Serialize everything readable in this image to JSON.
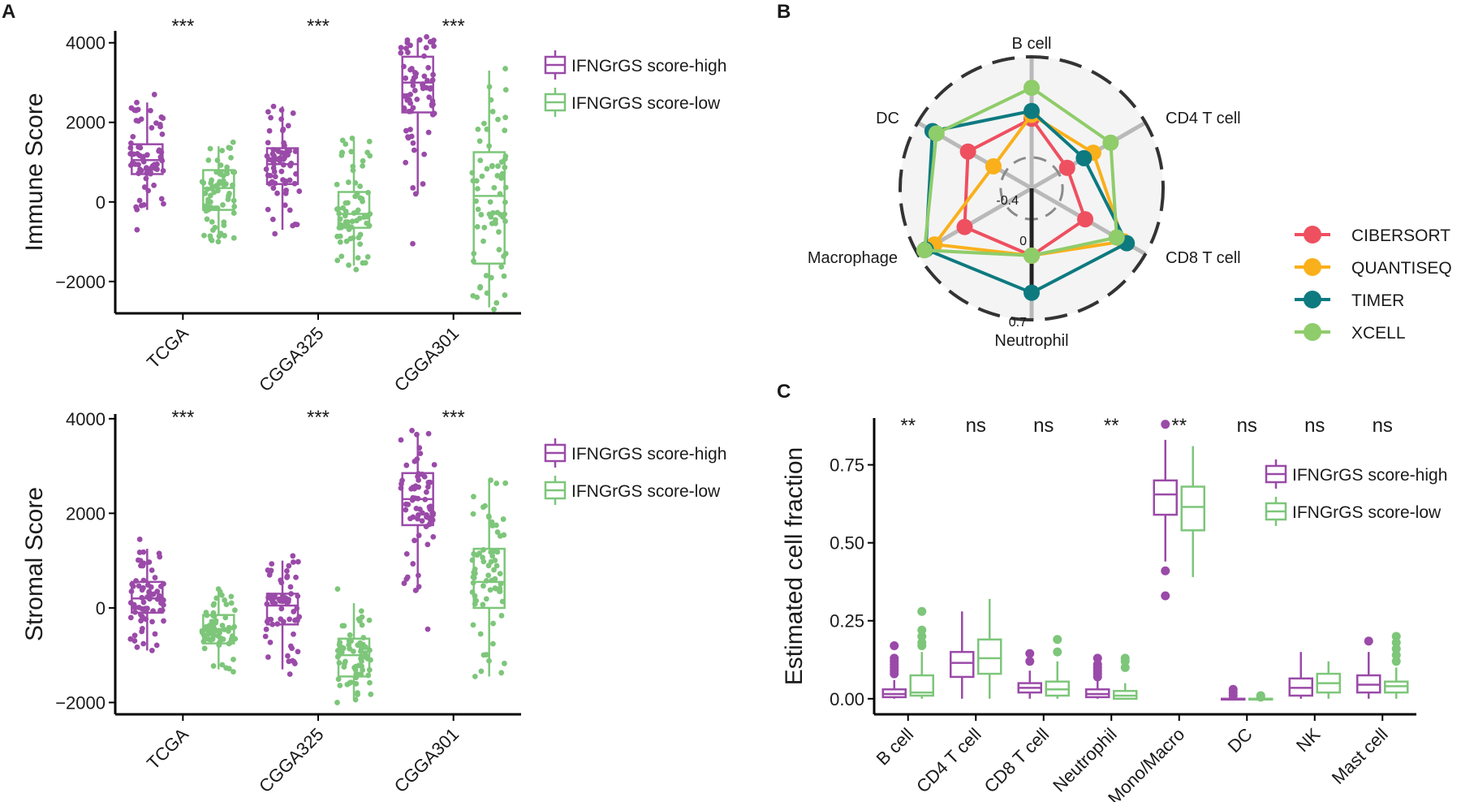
{
  "colors": {
    "high": "#9A4AA8",
    "low": "#7DC67A",
    "CIBERSORT": "#EE5060",
    "QUANTISEQ": "#F9B01B",
    "TIMER": "#0D7A80",
    "XCELL": "#8FCC6A"
  },
  "chart_data": [
    {
      "panel": "A",
      "type": "box",
      "ylabel": "Immune Score",
      "categories": [
        "TCGA",
        "CGGA325",
        "CGGA301"
      ],
      "yticks": [
        "4000",
        "2000",
        "0",
        "−2000"
      ],
      "ylim": [
        -2800,
        4300
      ],
      "significance": [
        "***",
        "***",
        "***"
      ],
      "legend": [
        "IFNGrGS score-high",
        "IFNGrGS score-low"
      ],
      "series": [
        {
          "name": "IFNGrGS score-high",
          "boxes": [
            {
              "q1": 700,
              "median": 1050,
              "q3": 1450,
              "lo": -200,
              "hi": 2500,
              "ptMin": -700,
              "ptMax": 2700
            },
            {
              "q1": 450,
              "median": 950,
              "q3": 1350,
              "lo": -700,
              "hi": 2400,
              "ptMin": -800,
              "ptMax": 2400
            },
            {
              "q1": 2250,
              "median": 3000,
              "q3": 3650,
              "lo": 200,
              "hi": 4100,
              "ptMin": -1050,
              "ptMax": 4150
            }
          ]
        },
        {
          "name": "IFNGrGS score-low",
          "boxes": [
            {
              "q1": -200,
              "median": 350,
              "q3": 800,
              "lo": -1000,
              "hi": 1400,
              "ptMin": -1000,
              "ptMax": 1500
            },
            {
              "q1": -650,
              "median": -300,
              "q3": 250,
              "lo": -1600,
              "hi": 1550,
              "ptMin": -1700,
              "ptMax": 1600
            },
            {
              "q1": -1550,
              "median": 150,
              "q3": 1250,
              "lo": -2650,
              "hi": 3300,
              "ptMin": -2700,
              "ptMax": 3350
            }
          ]
        }
      ]
    },
    {
      "panel": "A2",
      "type": "box",
      "ylabel": "Stromal Score",
      "categories": [
        "TCGA",
        "CGGA325",
        "CGGA301"
      ],
      "yticks": [
        "4000",
        "2000",
        "0",
        "−2000"
      ],
      "ylim": [
        -2250,
        4100
      ],
      "significance": [
        "***",
        "***",
        "***"
      ],
      "legend": [
        "IFNGrGS score-high",
        "IFNGrGS score-low"
      ],
      "series": [
        {
          "name": "IFNGrGS score-high",
          "boxes": [
            {
              "q1": -100,
              "median": 200,
              "q3": 550,
              "lo": -900,
              "hi": 1250,
              "ptMin": -900,
              "ptMax": 1450
            },
            {
              "q1": -350,
              "median": 50,
              "q3": 300,
              "lo": -1300,
              "hi": 1000,
              "ptMin": -1400,
              "ptMax": 1100
            },
            {
              "q1": 1750,
              "median": 2300,
              "q3": 2850,
              "lo": 350,
              "hi": 3700,
              "ptMin": -450,
              "ptMax": 3750
            }
          ]
        },
        {
          "name": "IFNGrGS score-low",
          "boxes": [
            {
              "q1": -750,
              "median": -450,
              "q3": -150,
              "lo": -1300,
              "hi": 350,
              "ptMin": -1350,
              "ptMax": 400
            },
            {
              "q1": -1450,
              "median": -1000,
              "q3": -650,
              "lo": -1950,
              "hi": 100,
              "ptMin": -2000,
              "ptMax": 400
            },
            {
              "q1": 0,
              "median": 550,
              "q3": 1250,
              "lo": -1450,
              "hi": 2700,
              "ptMin": -1450,
              "ptMax": 2700
            }
          ]
        }
      ]
    },
    {
      "panel": "B",
      "type": "radar",
      "axes": [
        "B cell",
        "CD4 T cell",
        "CD8 T cell",
        "Neutrophil",
        "Macrophage",
        "DC"
      ],
      "grid_labels": [
        "-0.4",
        "0",
        "0.7"
      ],
      "rlim": [
        -0.8,
        0.9
      ],
      "series": [
        {
          "name": "CIBERSORT",
          "values": [
            0.1,
            -0.27,
            0.0,
            0.07,
            0.2,
            0.15
          ]
        },
        {
          "name": "QUANTISEQ",
          "values": [
            0.15,
            0.12,
            0.57,
            0.07,
            0.65,
            -0.23
          ]
        },
        {
          "name": "TIMER",
          "values": [
            0.2,
            -0.02,
            0.62,
            0.55,
            0.78,
            0.68
          ]
        },
        {
          "name": "XCELL",
          "values": [
            0.5,
            0.38,
            0.47,
            0.07,
            0.8,
            0.62
          ]
        }
      ]
    },
    {
      "panel": "C",
      "type": "box",
      "ylabel": "Estimated cell fraction",
      "categories": [
        "B cell",
        "CD4 T cell",
        "CD8 T cell",
        "Neutrophil",
        "Mono/Macro",
        "DC",
        "NK",
        "Mast cell"
      ],
      "yticks": [
        "0.75",
        "0.50",
        "0.25",
        "0.00"
      ],
      "ylim": [
        -0.05,
        0.9
      ],
      "significance": [
        "**",
        "ns",
        "ns",
        "**",
        "**",
        "ns",
        "ns",
        "ns"
      ],
      "legend": [
        "IFNGrGS score-high",
        "IFNGrGS score-low"
      ],
      "series": [
        {
          "name": "IFNGrGS score-high",
          "boxes": [
            {
              "q1": 0.005,
              "median": 0.015,
              "q3": 0.03,
              "lo": 0.0,
              "hi": 0.06,
              "out": [
                0.08,
                0.09,
                0.1,
                0.11,
                0.12,
                0.13,
                0.17
              ]
            },
            {
              "q1": 0.07,
              "median": 0.115,
              "q3": 0.15,
              "lo": 0.0,
              "hi": 0.28,
              "out": []
            },
            {
              "q1": 0.02,
              "median": 0.035,
              "q3": 0.05,
              "lo": 0.0,
              "hi": 0.09,
              "out": [
                0.12,
                0.145
              ]
            },
            {
              "q1": 0.005,
              "median": 0.015,
              "q3": 0.03,
              "lo": 0.0,
              "hi": 0.06,
              "out": [
                0.07,
                0.08,
                0.09,
                0.1,
                0.11,
                0.13
              ]
            },
            {
              "q1": 0.59,
              "median": 0.655,
              "q3": 0.7,
              "lo": 0.44,
              "hi": 0.83,
              "out": [
                0.41,
                0.33,
                0.88
              ]
            },
            {
              "q1": 0.0,
              "median": 0.0,
              "q3": 0.0,
              "lo": 0.0,
              "hi": 0.0,
              "out": [
                0.01,
                0.02,
                0.03
              ]
            },
            {
              "q1": 0.01,
              "median": 0.035,
              "q3": 0.065,
              "lo": 0.0,
              "hi": 0.15,
              "out": []
            },
            {
              "q1": 0.02,
              "median": 0.045,
              "q3": 0.075,
              "lo": 0.0,
              "hi": 0.15,
              "out": [
                0.185
              ]
            }
          ]
        },
        {
          "name": "IFNGrGS score-low",
          "boxes": [
            {
              "q1": 0.01,
              "median": 0.02,
              "q3": 0.075,
              "lo": 0.0,
              "hi": 0.15,
              "out": [
                0.17,
                0.18,
                0.2,
                0.22,
                0.28
              ]
            },
            {
              "q1": 0.08,
              "median": 0.13,
              "q3": 0.19,
              "lo": 0.0,
              "hi": 0.32,
              "out": []
            },
            {
              "q1": 0.01,
              "median": 0.03,
              "q3": 0.055,
              "lo": 0.0,
              "hi": 0.12,
              "out": [
                0.15,
                0.19
              ]
            },
            {
              "q1": 0.0,
              "median": 0.01,
              "q3": 0.025,
              "lo": 0.0,
              "hi": 0.05,
              "out": [
                0.1,
                0.12,
                0.13
              ]
            },
            {
              "q1": 0.54,
              "median": 0.615,
              "q3": 0.68,
              "lo": 0.39,
              "hi": 0.81,
              "out": []
            },
            {
              "q1": 0.0,
              "median": 0.0,
              "q3": 0.0,
              "lo": 0.0,
              "hi": 0.0,
              "out": [
                0.005,
                0.01
              ]
            },
            {
              "q1": 0.02,
              "median": 0.05,
              "q3": 0.08,
              "lo": 0.0,
              "hi": 0.12,
              "out": []
            },
            {
              "q1": 0.02,
              "median": 0.04,
              "q3": 0.055,
              "lo": 0.0,
              "hi": 0.1,
              "out": [
                0.12,
                0.14,
                0.16,
                0.18,
                0.2
              ]
            }
          ]
        }
      ]
    }
  ],
  "labels": {
    "panel_a": "A",
    "panel_b": "B",
    "panel_c": "C"
  },
  "legend_b": {
    "title": "",
    "items": [
      "CIBERSORT",
      "QUANTISEQ",
      "TIMER",
      "XCELL"
    ]
  }
}
